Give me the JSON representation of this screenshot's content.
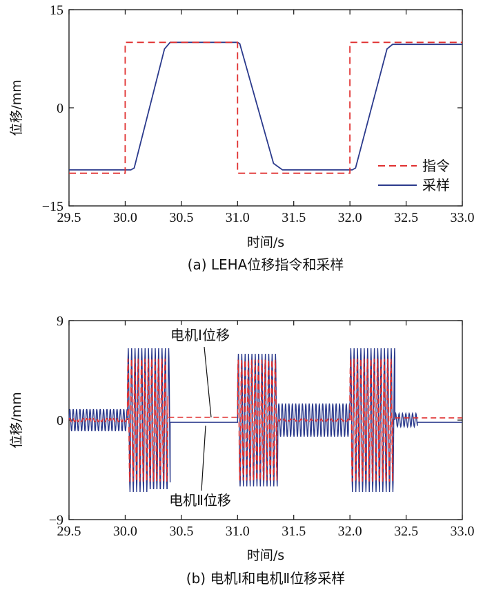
{
  "chart_data": [
    {
      "type": "line",
      "caption": "(a) LEHA位移指令和采样",
      "xlabel": "时间/s",
      "ylabel": "位移/mm",
      "xlim": [
        29.5,
        33.0
      ],
      "ylim": [
        -15,
        15
      ],
      "xticks": [
        "29.5",
        "30.0",
        "30.5",
        "31.0",
        "31.5",
        "32.0",
        "32.5",
        "33.0"
      ],
      "yticks": [
        "15",
        "0",
        "−15"
      ],
      "legend": {
        "position": "bottom-right"
      },
      "series": [
        {
          "name": "指令",
          "color": "#e03030",
          "dash": true,
          "points": [
            [
              29.5,
              -10
            ],
            [
              30.0,
              -10
            ],
            [
              30.0,
              10
            ],
            [
              31.0,
              10
            ],
            [
              31.0,
              -10
            ],
            [
              32.0,
              -10
            ],
            [
              32.0,
              10
            ],
            [
              33.0,
              10
            ]
          ]
        },
        {
          "name": "采样",
          "color": "#2b3a8c",
          "dash": false,
          "points": [
            [
              29.5,
              -9.5
            ],
            [
              30.05,
              -9.5
            ],
            [
              30.08,
              -9.2
            ],
            [
              30.35,
              9.0
            ],
            [
              30.4,
              10.0
            ],
            [
              31.0,
              10.0
            ],
            [
              31.02,
              9.8
            ],
            [
              31.32,
              -8.5
            ],
            [
              31.4,
              -9.5
            ],
            [
              32.02,
              -9.5
            ],
            [
              32.05,
              -9.2
            ],
            [
              32.33,
              9.0
            ],
            [
              32.38,
              9.7
            ],
            [
              33.0,
              9.7
            ]
          ]
        }
      ]
    },
    {
      "type": "line",
      "caption": "(b) 电机Ⅰ和电机Ⅱ位移采样",
      "xlabel": "时间/s",
      "ylabel": "位移/mm",
      "xlim": [
        29.5,
        33.0
      ],
      "ylim": [
        -9,
        9
      ],
      "xticks": [
        "29.5",
        "30.0",
        "30.5",
        "31.0",
        "31.5",
        "32.0",
        "32.5",
        "33.0"
      ],
      "yticks": [
        "9",
        "0",
        "−9"
      ],
      "annotations": [
        "电机Ⅰ位移",
        "电机Ⅱ位移"
      ],
      "series": [
        {
          "name": "电机Ⅰ位移",
          "color": "#e03030",
          "dash": true,
          "segments": [
            {
              "x0": 29.5,
              "x1": 30.02,
              "amp": 0.15,
              "offset": 0
            },
            {
              "x0": 30.02,
              "x1": 30.38,
              "amp": 5.6,
              "offset": 0
            },
            {
              "x0": 30.38,
              "x1": 31.0,
              "amp": 0,
              "offset": 0.25
            },
            {
              "x0": 31.0,
              "x1": 31.35,
              "amp": 5.5,
              "offset": 0
            },
            {
              "x0": 31.35,
              "x1": 32.0,
              "amp": 0.1,
              "offset": 0
            },
            {
              "x0": 32.0,
              "x1": 32.38,
              "amp": 5.6,
              "offset": 0
            },
            {
              "x0": 32.38,
              "x1": 33.0,
              "amp": 0,
              "offset": 0.2
            }
          ]
        },
        {
          "name": "电机Ⅱ位移",
          "color": "#2b3a8c",
          "dash": false,
          "segments": [
            {
              "x0": 29.5,
              "x1": 30.02,
              "amp": 1.0,
              "offset": 0
            },
            {
              "x0": 30.02,
              "x1": 30.4,
              "amp": 6.5,
              "offset": 0
            },
            {
              "x0": 30.4,
              "x1": 31.0,
              "amp": 0,
              "offset": -0.2
            },
            {
              "x0": 31.0,
              "x1": 31.36,
              "amp": 6.0,
              "offset": 0
            },
            {
              "x0": 31.36,
              "x1": 32.0,
              "amp": 1.5,
              "offset": 0
            },
            {
              "x0": 32.0,
              "x1": 32.4,
              "amp": 6.5,
              "offset": 0
            },
            {
              "x0": 32.4,
              "x1": 32.6,
              "amp": 0.6,
              "offset": 0
            },
            {
              "x0": 32.6,
              "x1": 33.0,
              "amp": 0,
              "offset": -0.2
            }
          ]
        }
      ]
    }
  ]
}
